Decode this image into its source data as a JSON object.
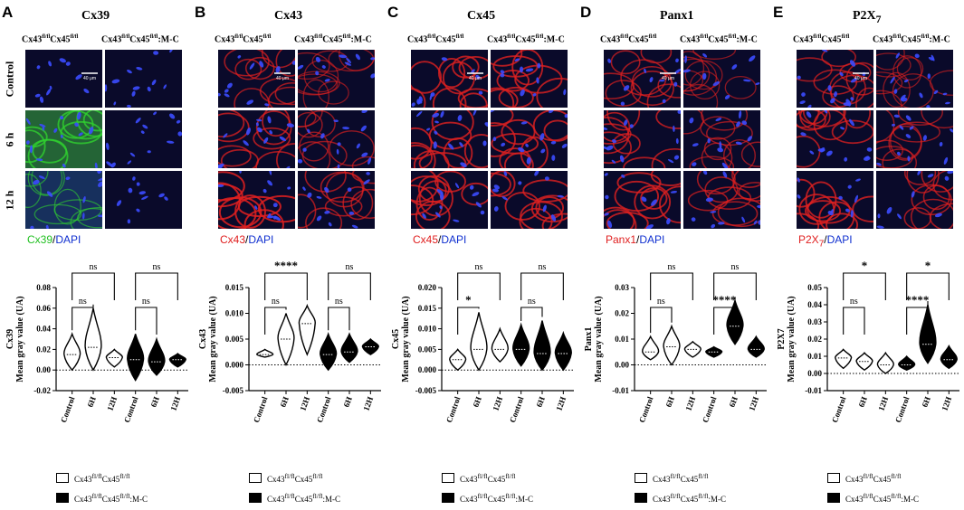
{
  "figure": {
    "groups": [
      "Cx43fl/flCx45fl/fl",
      "Cx43fl/flCx45fl/fl:M-C"
    ],
    "row_labels": [
      "Control",
      "6 h",
      "12 h"
    ],
    "scale_bar": "40 μm",
    "legend": [
      "Cx43fl/flCx45fl/fl",
      "Cx43fl/flCx45fl/fl:M-C"
    ]
  },
  "panels": [
    {
      "letter": "A",
      "title": "Cx39",
      "stain": "Cx39",
      "stain_color": "#22c022",
      "dapi": "DAPI"
    },
    {
      "letter": "B",
      "title": "Cx43",
      "stain": "Cx43",
      "stain_color": "#e02020",
      "dapi": "DAPI"
    },
    {
      "letter": "C",
      "title": "Cx45",
      "stain": "Cx45",
      "stain_color": "#e02020",
      "dapi": "DAPI"
    },
    {
      "letter": "D",
      "title": "Panx1",
      "stain": "Panx1",
      "stain_color": "#e02020",
      "dapi": "DAPI"
    },
    {
      "letter": "E",
      "title": "P2X7",
      "stain": "P2X7",
      "stain_color": "#e02020",
      "dapi": "DAPI"
    }
  ],
  "chart_data": [
    {
      "type": "violin",
      "ylabel": "Cx39\nMean gray value (UA)",
      "ylim": [
        -0.02,
        0.08
      ],
      "yticks": [
        "-0.02",
        "0.00",
        "0.02",
        "0.04",
        "0.06",
        "0.08"
      ],
      "categories": [
        "Control",
        "6H",
        "12H",
        "Control",
        "6H",
        "12H"
      ],
      "series": [
        {
          "name": "Cx43fl/flCx45fl/fl",
          "medians": [
            0.015,
            0.022,
            0.012
          ],
          "mins": [
            0.0,
            0.0,
            0.003
          ],
          "maxs": [
            0.035,
            0.06,
            0.02
          ]
        },
        {
          "name": "Cx43fl/flCx45fl/fl:M-C",
          "medians": [
            0.01,
            0.008,
            0.01
          ],
          "mins": [
            -0.01,
            -0.005,
            0.003
          ],
          "maxs": [
            0.035,
            0.03,
            0.016
          ]
        }
      ],
      "comparisons": [
        {
          "from": 0,
          "to": 1,
          "label": "ns"
        },
        {
          "from": 0,
          "to": 2,
          "label": "ns"
        },
        {
          "from": 3,
          "to": 4,
          "label": "ns"
        },
        {
          "from": 3,
          "to": 5,
          "label": "ns"
        }
      ]
    },
    {
      "type": "violin",
      "ylabel": "Cx43\nMean gray value (UA)",
      "ylim": [
        -0.005,
        0.015
      ],
      "yticks": [
        "-0.005",
        "0.000",
        "0.005",
        "0.010",
        "0.015"
      ],
      "categories": [
        "Control",
        "6H",
        "12H",
        "Control",
        "6H",
        "12H"
      ],
      "series": [
        {
          "name": "Cx43fl/flCx45fl/fl",
          "medians": [
            0.002,
            0.005,
            0.008
          ],
          "mins": [
            0.0015,
            0.0,
            0.002
          ],
          "maxs": [
            0.003,
            0.01,
            0.0115
          ]
        },
        {
          "name": "Cx43fl/flCx45fl/fl:M-C",
          "medians": [
            0.002,
            0.0025,
            0.0035
          ],
          "mins": [
            -0.001,
            0.0005,
            0.002
          ],
          "maxs": [
            0.006,
            0.006,
            0.005
          ]
        }
      ],
      "comparisons": [
        {
          "from": 0,
          "to": 1,
          "label": "ns"
        },
        {
          "from": 0,
          "to": 2,
          "label": "****"
        },
        {
          "from": 3,
          "to": 4,
          "label": "ns"
        },
        {
          "from": 3,
          "to": 5,
          "label": "ns"
        }
      ]
    },
    {
      "type": "violin",
      "ylabel": "Cx45\nMean gray value (UA)",
      "ylim": [
        -0.005,
        0.02
      ],
      "yticks": [
        "-0.005",
        "0.000",
        "0.005",
        "0.010",
        "0.015",
        "0.020"
      ],
      "categories": [
        "Control",
        "6H",
        "12H",
        "Control",
        "6H",
        "12H"
      ],
      "series": [
        {
          "name": "Cx43fl/flCx45fl/fl",
          "medians": [
            0.0025,
            0.005,
            0.005
          ],
          "mins": [
            0.0,
            0.0,
            0.002
          ],
          "maxs": [
            0.005,
            0.014,
            0.01
          ]
        },
        {
          "name": "Cx43fl/flCx45fl/fl:M-C",
          "medians": [
            0.005,
            0.004,
            0.004
          ],
          "mins": [
            0.001,
            0.0,
            0.0
          ],
          "maxs": [
            0.011,
            0.012,
            0.009
          ]
        }
      ],
      "comparisons": [
        {
          "from": 0,
          "to": 1,
          "label": "*"
        },
        {
          "from": 0,
          "to": 2,
          "label": "ns"
        },
        {
          "from": 3,
          "to": 4,
          "label": "ns"
        },
        {
          "from": 3,
          "to": 5,
          "label": "ns"
        }
      ]
    },
    {
      "type": "violin",
      "ylabel": "Panx1\nMean gray value (UA)",
      "ylim": [
        -0.01,
        0.03
      ],
      "yticks": [
        "-0.01",
        "0.00",
        "0.01",
        "0.02",
        "0.03"
      ],
      "categories": [
        "Control",
        "6H",
        "12H",
        "Control",
        "6H",
        "12H"
      ],
      "series": [
        {
          "name": "Cx43fl/flCx45fl/fl",
          "medians": [
            0.005,
            0.007,
            0.006
          ],
          "mins": [
            0.002,
            0.0,
            0.003
          ],
          "maxs": [
            0.011,
            0.015,
            0.009
          ]
        },
        {
          "name": "Cx43fl/flCx45fl/fl:M-C",
          "medians": [
            0.005,
            0.015,
            0.006
          ],
          "mins": [
            0.003,
            0.008,
            0.003
          ],
          "maxs": [
            0.007,
            0.025,
            0.011
          ]
        }
      ],
      "comparisons": [
        {
          "from": 0,
          "to": 1,
          "label": "ns"
        },
        {
          "from": 0,
          "to": 2,
          "label": "ns"
        },
        {
          "from": 3,
          "to": 4,
          "label": "****"
        },
        {
          "from": 3,
          "to": 5,
          "label": "ns"
        }
      ]
    },
    {
      "type": "violin",
      "ylabel": "P2X7\nMean gray value (UA)",
      "ylim": [
        -0.01,
        0.05
      ],
      "yticks": [
        "-0.01",
        "0.00",
        "0.01",
        "0.02",
        "0.03",
        "0.04",
        "0.05"
      ],
      "categories": [
        "Control",
        "6H",
        "12H",
        "Control",
        "6H",
        "12H"
      ],
      "series": [
        {
          "name": "Cx43fl/flCx45fl/fl",
          "medians": [
            0.009,
            0.007,
            0.005
          ],
          "mins": [
            0.003,
            0.002,
            0.0
          ],
          "maxs": [
            0.014,
            0.012,
            0.012
          ]
        },
        {
          "name": "Cx43fl/flCx45fl/fl:M-C",
          "medians": [
            0.005,
            0.017,
            0.008
          ],
          "mins": [
            0.002,
            0.006,
            0.003
          ],
          "maxs": [
            0.01,
            0.04,
            0.016
          ]
        }
      ],
      "comparisons": [
        {
          "from": 0,
          "to": 1,
          "label": "ns"
        },
        {
          "from": 0,
          "to": 2,
          "label": "*"
        },
        {
          "from": 3,
          "to": 4,
          "label": "****"
        },
        {
          "from": 3,
          "to": 5,
          "label": "*"
        }
      ]
    }
  ]
}
